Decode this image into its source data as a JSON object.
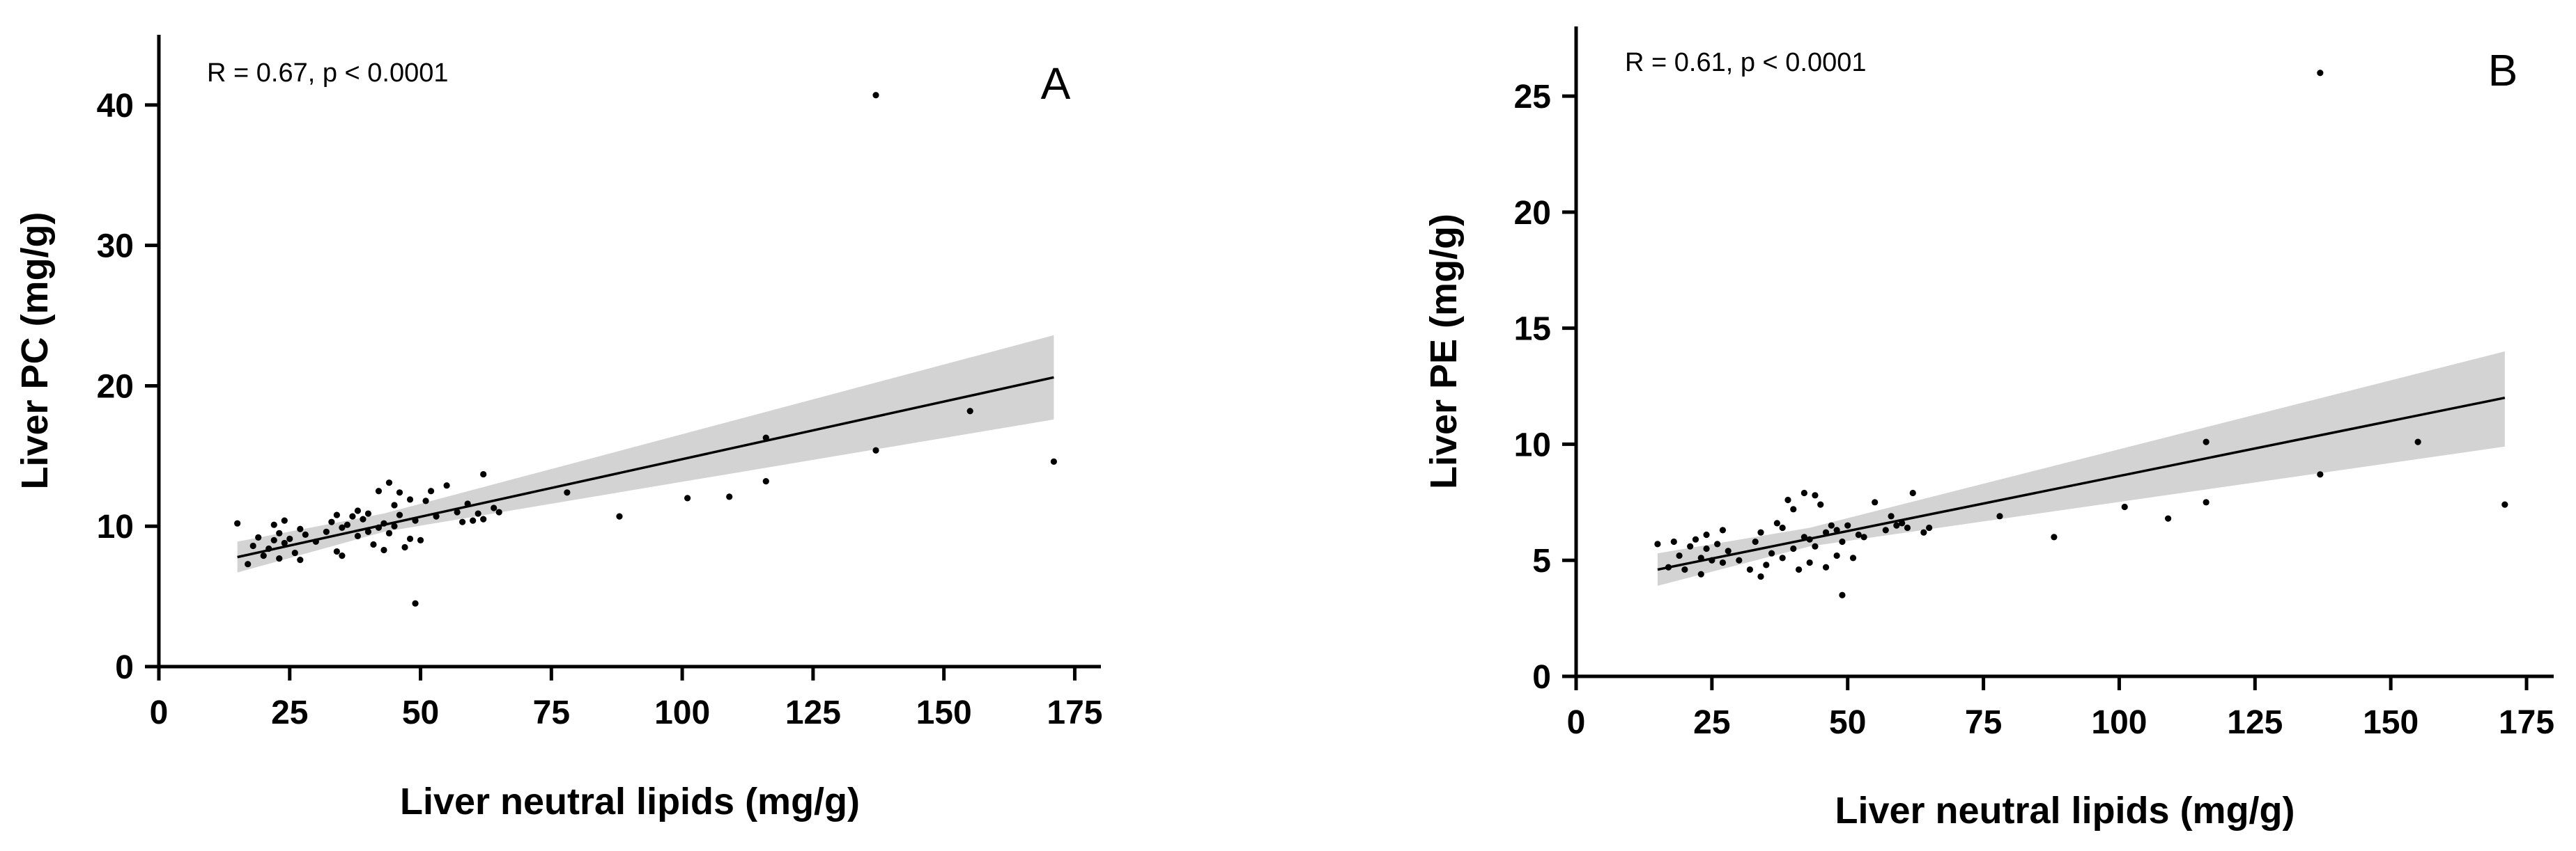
{
  "chart_data": [
    {
      "type": "scatter",
      "panel": "A",
      "stat": "R = 0.67, p < 0.0001",
      "xlabel": "Liver neutral lipids (mg/g)",
      "ylabel": "Liver PC (mg/g)",
      "xlim": [
        0,
        180
      ],
      "ylim": [
        0,
        45
      ],
      "xticks": [
        0,
        25,
        50,
        75,
        100,
        125,
        150,
        175
      ],
      "yticks": [
        0,
        10,
        20,
        30,
        40
      ],
      "fit": {
        "x": [
          15,
          171
        ],
        "y": [
          7.8,
          20.6
        ]
      },
      "ci": {
        "x": [
          15,
          43,
          171
        ],
        "lower": [
          6.7,
          9.6,
          17.6
        ],
        "upper": [
          8.9,
          10.9,
          23.6
        ]
      },
      "points": [
        [
          15,
          10.2
        ],
        [
          17,
          7.3
        ],
        [
          18,
          8.6
        ],
        [
          19,
          9.2
        ],
        [
          20,
          7.9
        ],
        [
          21,
          8.4
        ],
        [
          22,
          9.0
        ],
        [
          22,
          10.1
        ],
        [
          23,
          7.7
        ],
        [
          23,
          9.5
        ],
        [
          24,
          8.8
        ],
        [
          24,
          10.4
        ],
        [
          25,
          9.1
        ],
        [
          26,
          8.1
        ],
        [
          27,
          9.8
        ],
        [
          27,
          7.6
        ],
        [
          28,
          9.4
        ],
        [
          30,
          8.9
        ],
        [
          32,
          9.6
        ],
        [
          33,
          10.3
        ],
        [
          34,
          8.2
        ],
        [
          34,
          10.8
        ],
        [
          35,
          7.9
        ],
        [
          35,
          9.9
        ],
        [
          36,
          10.1
        ],
        [
          37,
          10.7
        ],
        [
          38,
          9.3
        ],
        [
          38,
          11.1
        ],
        [
          39,
          10.5
        ],
        [
          40,
          9.6
        ],
        [
          40,
          10.9
        ],
        [
          41,
          8.7
        ],
        [
          42,
          12.5
        ],
        [
          42,
          9.9
        ],
        [
          43,
          8.3
        ],
        [
          43,
          10.2
        ],
        [
          44,
          13.1
        ],
        [
          44,
          9.5
        ],
        [
          45,
          11.5
        ],
        [
          45,
          10.0
        ],
        [
          46,
          10.8
        ],
        [
          46,
          12.4
        ],
        [
          47,
          8.5
        ],
        [
          48,
          11.9
        ],
        [
          48,
          9.1
        ],
        [
          49,
          4.5
        ],
        [
          49,
          10.4
        ],
        [
          50,
          9.0
        ],
        [
          51,
          11.8
        ],
        [
          52,
          12.5
        ],
        [
          53,
          10.7
        ],
        [
          55,
          12.9
        ],
        [
          57,
          11.0
        ],
        [
          58,
          10.3
        ],
        [
          59,
          11.6
        ],
        [
          60,
          10.4
        ],
        [
          61,
          10.9
        ],
        [
          62,
          10.5
        ],
        [
          62,
          13.7
        ],
        [
          64,
          11.3
        ],
        [
          65,
          11.0
        ],
        [
          78,
          12.4
        ],
        [
          88,
          10.7
        ],
        [
          101,
          12.0
        ],
        [
          109,
          12.1
        ],
        [
          116,
          16.3
        ],
        [
          116,
          13.2
        ],
        [
          137,
          40.7
        ],
        [
          137,
          15.4
        ],
        [
          155,
          18.2
        ],
        [
          171,
          14.6
        ]
      ]
    },
    {
      "type": "scatter",
      "panel": "B",
      "stat": "R = 0.61, p < 0.0001",
      "xlabel": "Liver neutral lipids (mg/g)",
      "ylabel": "Liver PE (mg/g)",
      "xlim": [
        0,
        180
      ],
      "ylim": [
        0,
        28
      ],
      "xticks": [
        0,
        25,
        50,
        75,
        100,
        125,
        150,
        175
      ],
      "yticks": [
        0,
        5,
        10,
        15,
        20,
        25
      ],
      "fit": {
        "x": [
          15,
          171
        ],
        "y": [
          4.6,
          12.0
        ]
      },
      "ci": {
        "x": [
          15,
          43,
          171
        ],
        "lower": [
          3.9,
          5.6,
          9.9
        ],
        "upper": [
          5.3,
          6.4,
          14.0
        ]
      },
      "points": [
        [
          15,
          5.7
        ],
        [
          17,
          4.7
        ],
        [
          18,
          5.8
        ],
        [
          19,
          5.2
        ],
        [
          20,
          4.6
        ],
        [
          21,
          5.6
        ],
        [
          22,
          5.9
        ],
        [
          23,
          5.1
        ],
        [
          23,
          4.4
        ],
        [
          24,
          5.5
        ],
        [
          24,
          6.1
        ],
        [
          25,
          5.0
        ],
        [
          26,
          5.7
        ],
        [
          27,
          6.3
        ],
        [
          27,
          4.9
        ],
        [
          28,
          5.4
        ],
        [
          30,
          5.0
        ],
        [
          32,
          4.6
        ],
        [
          33,
          5.8
        ],
        [
          34,
          4.3
        ],
        [
          34,
          6.2
        ],
        [
          35,
          4.8
        ],
        [
          36,
          5.3
        ],
        [
          37,
          6.6
        ],
        [
          38,
          5.1
        ],
        [
          38,
          6.4
        ],
        [
          39,
          7.6
        ],
        [
          40,
          5.5
        ],
        [
          40,
          7.2
        ],
        [
          41,
          4.6
        ],
        [
          42,
          6.0
        ],
        [
          42,
          7.9
        ],
        [
          43,
          4.9
        ],
        [
          43,
          5.9
        ],
        [
          44,
          7.8
        ],
        [
          44,
          5.6
        ],
        [
          45,
          7.4
        ],
        [
          46,
          6.2
        ],
        [
          46,
          4.7
        ],
        [
          47,
          6.5
        ],
        [
          48,
          5.2
        ],
        [
          48,
          6.3
        ],
        [
          49,
          3.5
        ],
        [
          49,
          5.8
        ],
        [
          50,
          6.5
        ],
        [
          51,
          5.1
        ],
        [
          52,
          6.1
        ],
        [
          53,
          6.0
        ],
        [
          55,
          7.5
        ],
        [
          57,
          6.3
        ],
        [
          58,
          6.9
        ],
        [
          59,
          6.5
        ],
        [
          60,
          6.6
        ],
        [
          61,
          6.4
        ],
        [
          62,
          7.9
        ],
        [
          64,
          6.2
        ],
        [
          65,
          6.4
        ],
        [
          78,
          6.9
        ],
        [
          88,
          6.0
        ],
        [
          101,
          7.3
        ],
        [
          109,
          6.8
        ],
        [
          116,
          10.1
        ],
        [
          116,
          7.5
        ],
        [
          137,
          26.0
        ],
        [
          137,
          8.7
        ],
        [
          155,
          10.1
        ],
        [
          171,
          7.4
        ]
      ]
    }
  ]
}
